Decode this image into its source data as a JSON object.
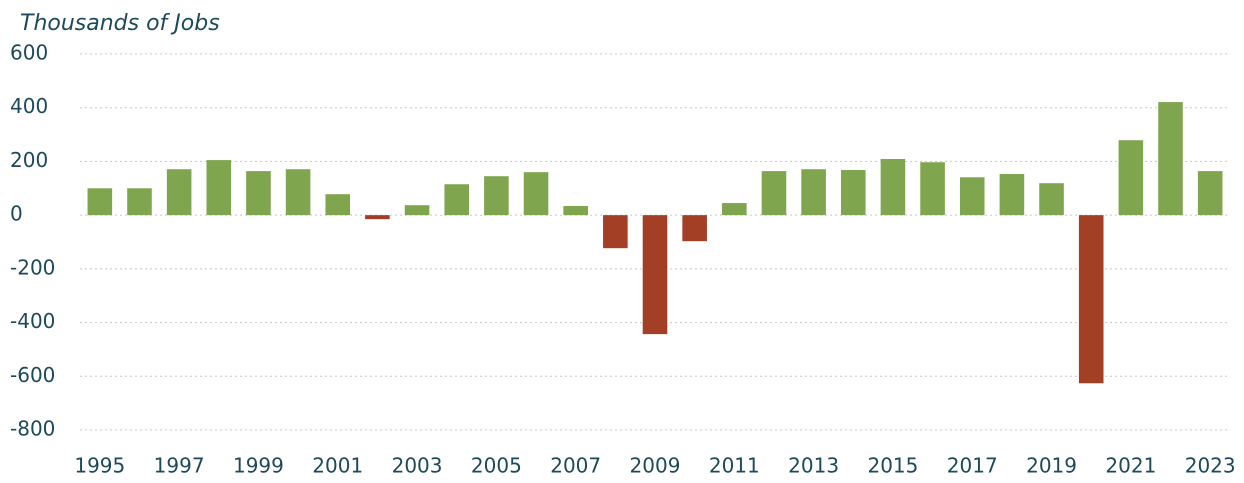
{
  "chart_data": {
    "type": "bar",
    "title": "Thousands of Jobs",
    "categories": [
      "1995",
      null,
      "1997",
      null,
      "1999",
      null,
      "2001",
      null,
      "2003",
      null,
      "2005",
      null,
      "2007",
      null,
      "2009",
      null,
      "2011",
      null,
      "2013",
      null,
      "2015",
      null,
      "2017",
      null,
      "2019",
      null,
      "2021",
      null,
      "2023"
    ],
    "values": [
      100,
      100,
      171,
      205,
      164,
      171,
      78,
      -15,
      37,
      115,
      145,
      160,
      34,
      -123,
      -443,
      -97,
      45,
      164,
      171,
      168,
      209,
      197,
      141,
      153,
      119,
      -626,
      279,
      421,
      164
    ],
    "positive_color": "#80a54f",
    "negative_color": "#a33f25",
    "ylim": [
      -800,
      600
    ],
    "yticks": [
      -800,
      -600,
      -400,
      -200,
      0,
      200,
      400,
      600
    ],
    "grid": true
  }
}
